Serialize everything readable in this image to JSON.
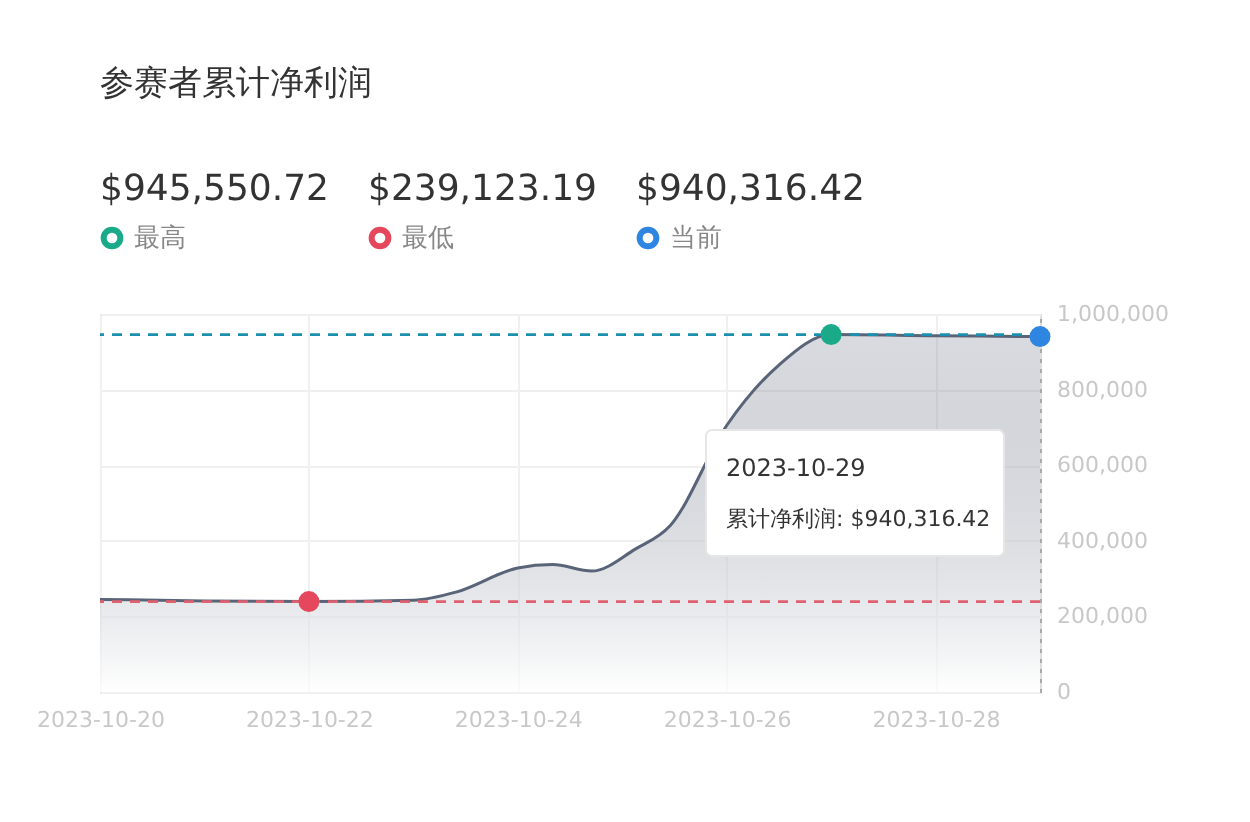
{
  "chart_data": {
    "type": "area",
    "title": "参赛者累计净利润",
    "x": [
      "2023-10-20",
      "2023-10-21",
      "2023-10-22",
      "2023-10-23",
      "2023-10-23T10:00",
      "2023-10-24",
      "2023-10-24T08:00",
      "2023-10-24T17:00",
      "2023-10-25T03:00",
      "2023-10-25T11:00",
      "2023-10-26",
      "2023-10-26T12:00",
      "2023-10-27",
      "2023-10-28",
      "2023-10-29"
    ],
    "series": [
      {
        "color": "#5a6478",
        "values": [
          245000,
          241000,
          239123.19,
          243000,
          265000,
          328000,
          337000,
          320000,
          378000,
          440000,
          705000,
          865000,
          945550.72,
          942500,
          940316.42
        ]
      },
      {
        "name": "最高",
        "type": "scatter",
        "marker": "circle",
        "color": "#1aaa8a",
        "x": [
          "2023-10-27"
        ],
        "values": [
          945550.72
        ]
      },
      {
        "name": "最低",
        "type": "scatter",
        "marker": "circle",
        "color": "#e5485d",
        "x": [
          "2023-10-22"
        ],
        "values": [
          239123.19
        ]
      },
      {
        "name": "当前",
        "type": "scatter",
        "marker": "circle",
        "color": "#2f86e0",
        "x": [
          "2023-10-29"
        ],
        "values": [
          940316.42
        ]
      }
    ],
    "xlim": [
      "2023-10-20",
      "2023-10-29"
    ],
    "xticks": [
      "2023-10-20",
      "2023-10-22",
      "2023-10-24",
      "2023-10-26",
      "2023-10-28"
    ],
    "ylim": [
      0,
      1000000
    ],
    "yticks": [
      0,
      {
        "value": 200000,
        "label": "200,000"
      },
      {
        "value": 400000,
        "label": "400,000"
      },
      {
        "value": 600000,
        "label": "600,000"
      },
      {
        "value": 800000,
        "label": "800,000"
      },
      {
        "value": 1000000,
        "label": "1,000,000"
      }
    ],
    "grid": true,
    "legend": "top left",
    "marker": "none",
    "ref_lines": [
      {
        "axis": "y",
        "value": 945550.72,
        "color": "#1a8fb0",
        "line_style": "dashed"
      },
      {
        "axis": "y",
        "value": 239123.19,
        "color": "#e06070",
        "line_style": "dashed"
      }
    ],
    "annotations": [
      "$945,550.72",
      "$239,123.19",
      "$940,316.42",
      "2023-10-29",
      "累计净利润: $940,316.42"
    ]
  }
}
